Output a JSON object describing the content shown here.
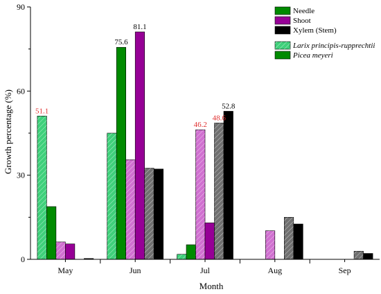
{
  "chart_data": {
    "type": "bar",
    "categories": [
      "May",
      "Jun",
      "Jul",
      "Aug",
      "Sep"
    ],
    "xlabel": "Month",
    "ylabel": "Growth percentage (%)",
    "ylim": [
      0,
      90
    ],
    "yticks": [
      0,
      30,
      60,
      90
    ],
    "grid": false,
    "legend_position": "top-right",
    "series": [
      {
        "name": "Needle",
        "species": "Larix principis-rupprechtii",
        "tissue": "Needle",
        "color": "#3ed07a",
        "hatched": true,
        "values": [
          51.1,
          45.0,
          1.8,
          0,
          0
        ]
      },
      {
        "name": "Needle",
        "species": "Picea meyeri",
        "tissue": "Needle",
        "color": "#008a00",
        "hatched": false,
        "values": [
          18.8,
          75.6,
          5.2,
          0,
          0
        ]
      },
      {
        "name": "Shoot",
        "species": "Larix principis-rupprechtii",
        "tissue": "Shoot",
        "color": "#d070d0",
        "hatched": true,
        "values": [
          6.2,
          35.5,
          46.2,
          10.2,
          0
        ]
      },
      {
        "name": "Shoot",
        "species": "Picea meyeri",
        "tissue": "Shoot",
        "color": "#960096",
        "hatched": false,
        "values": [
          5.5,
          81.1,
          13.0,
          0,
          0
        ]
      },
      {
        "name": "Xylem (Stem)",
        "species": "Larix principis-rupprechtii",
        "tissue": "Xylem (Stem)",
        "color": "#707070",
        "hatched": true,
        "values": [
          0,
          32.5,
          48.6,
          15.0,
          2.9
        ]
      },
      {
        "name": "Xylem (Stem)",
        "species": "Picea meyeri",
        "tissue": "Xylem (Stem)",
        "color": "#000000",
        "hatched": false,
        "values": [
          0.3,
          32.2,
          52.8,
          12.6,
          2.1
        ]
      }
    ],
    "data_labels": [
      {
        "category": "May",
        "series_index": 0,
        "text": "51.1",
        "color": "#e03030"
      },
      {
        "category": "Jun",
        "series_index": 1,
        "text": "75.6",
        "color": "#000000"
      },
      {
        "category": "Jun",
        "series_index": 3,
        "text": "81.1",
        "color": "#000000"
      },
      {
        "category": "Jul",
        "series_index": 2,
        "text": "46.2",
        "color": "#e03030"
      },
      {
        "category": "Jul",
        "series_index": 4,
        "text": "48.6",
        "color": "#e03030"
      },
      {
        "category": "Jul",
        "series_index": 5,
        "text": "52.8",
        "color": "#000000"
      }
    ],
    "legend": {
      "tissues": [
        {
          "label": "Needle",
          "color": "#008a00"
        },
        {
          "label": "Shoot",
          "color": "#960096"
        },
        {
          "label": "Xylem (Stem)",
          "color": "#000000"
        }
      ],
      "species": [
        {
          "label": "Larix principis-rupprechtii",
          "color": "#3ed07a",
          "hatched": true
        },
        {
          "label": "Picea meyeri",
          "color": "#008a00",
          "hatched": false
        }
      ]
    }
  }
}
